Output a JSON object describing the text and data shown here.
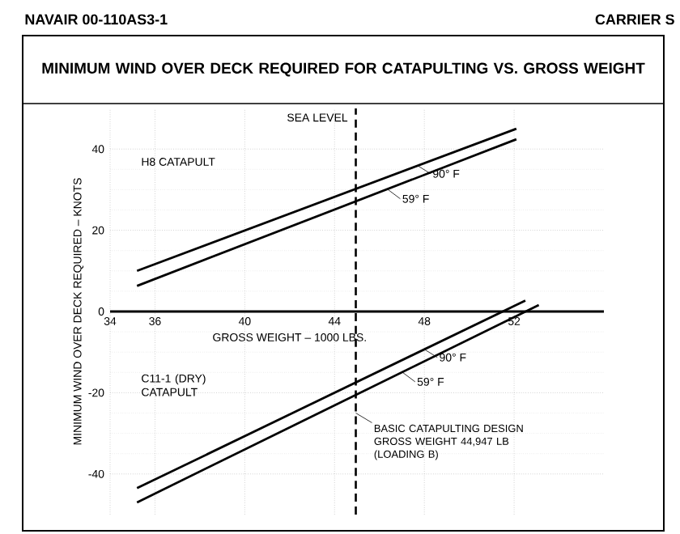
{
  "chart_data": {
    "type": "line",
    "title": "MINIMUM WIND OVER DECK REQUIRED FOR CATAPULTING VS. GROSS WEIGHT",
    "xlabel": "GROSS WEIGHT – 1000 LBS.",
    "ylabel": "MINIMUM WIND OVER DECK REQUIRED – KNOTS",
    "xlim": [
      34,
      56
    ],
    "xticks": [
      34,
      36,
      40,
      44,
      48,
      52
    ],
    "ylim": [
      -50,
      50
    ],
    "yticks": [
      -40,
      -20,
      0,
      20,
      40
    ],
    "grid": true,
    "legend": "right",
    "marker": "none",
    "line_style": "solid",
    "series": [
      {
        "name": "90° F",
        "color": "#000000",
        "x": [
          35.2,
          52.1
        ],
        "values": [
          10,
          45
        ]
      },
      {
        "name": "59° F",
        "color": "#000000",
        "x": [
          35.2,
          52.1
        ],
        "values": [
          6.3,
          42.4
        ]
      },
      {
        "name": "90° F",
        "color": "#000000",
        "x": [
          35.2,
          52.5
        ],
        "values": [
          -43.5,
          2.7
        ]
      },
      {
        "name": "59° F",
        "color": "#000000",
        "x": [
          35.2,
          53.1
        ],
        "values": [
          -47,
          1.6
        ]
      }
    ],
    "ref_lines": [
      {
        "axis": "x",
        "value": 44.947,
        "label": "BASIC CATAPULTING DESIGN GROSS WEIGHT 44,947 LB (LOADING B)",
        "line_style": "dashed"
      }
    ],
    "annotations": [
      "NAVAIR 00-110AS3-1",
      "CARRIER S",
      "SEA LEVEL",
      "H8 CATAPULT",
      "C11-1 (DRY) CATAPULT"
    ]
  }
}
